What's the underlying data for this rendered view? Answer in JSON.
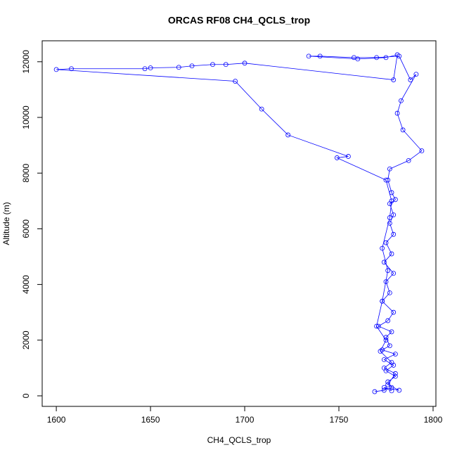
{
  "chart_data": {
    "type": "line",
    "title": "ORCAS RF08 CH4_QCLS_trop",
    "x_label": "CH4_QCLS_trop",
    "y_label": "Altitude (m)",
    "color": "#0000ff",
    "markers": true,
    "xlim": [
      1592.5,
      1801.5
    ],
    "ylim": [
      -379,
      12753
    ],
    "xticks": [
      1600,
      1650,
      1700,
      1750,
      1800
    ],
    "yticks": [
      0,
      2000,
      4000,
      6000,
      8000,
      10000,
      12000
    ],
    "x": [
      1769,
      1774,
      1778,
      1776,
      1780,
      1775,
      1779,
      1774,
      1780,
      1773,
      1777,
      1775,
      1778,
      1771,
      1776,
      1779,
      1773,
      1777,
      1775,
      1779,
      1774,
      1778,
      1775,
      1779,
      1777,
      1779,
      1777,
      1780,
      1778,
      1776,
      1777,
      1787,
      1794,
      1784,
      1781,
      1783,
      1791,
      1788,
      1782,
      1770,
      1758,
      1740,
      1734,
      1760,
      1775,
      1781,
      1779,
      1700,
      1690,
      1683,
      1672,
      1665,
      1650,
      1647,
      1608,
      1600,
      1695,
      1709,
      1723,
      1755,
      1749,
      1775,
      1778,
      1777,
      1773,
      1776,
      1773,
      1770,
      1775,
      1772,
      1778,
      1774,
      1780,
      1776,
      1782,
      1774,
      1778
    ],
    "values": [
      150,
      200,
      300,
      500,
      700,
      900,
      1100,
      1300,
      1500,
      1650,
      1800,
      2100,
      2300,
      2500,
      2700,
      3000,
      3400,
      3700,
      4100,
      4400,
      4800,
      5100,
      5500,
      5800,
      6200,
      6500,
      6900,
      7050,
      7300,
      7750,
      8150,
      8450,
      8800,
      9550,
      10150,
      10600,
      11550,
      11350,
      12200,
      12150,
      12150,
      12200,
      12200,
      12100,
      12150,
      12250,
      11350,
      11950,
      11900,
      11900,
      11850,
      11800,
      11780,
      11750,
      11750,
      11720,
      11300,
      10300,
      9370,
      8600,
      8550,
      7750,
      7000,
      6400,
      5300,
      4500,
      3400,
      2500,
      2000,
      1600,
      1200,
      1000,
      800,
      400,
      200,
      300,
      180
    ]
  }
}
